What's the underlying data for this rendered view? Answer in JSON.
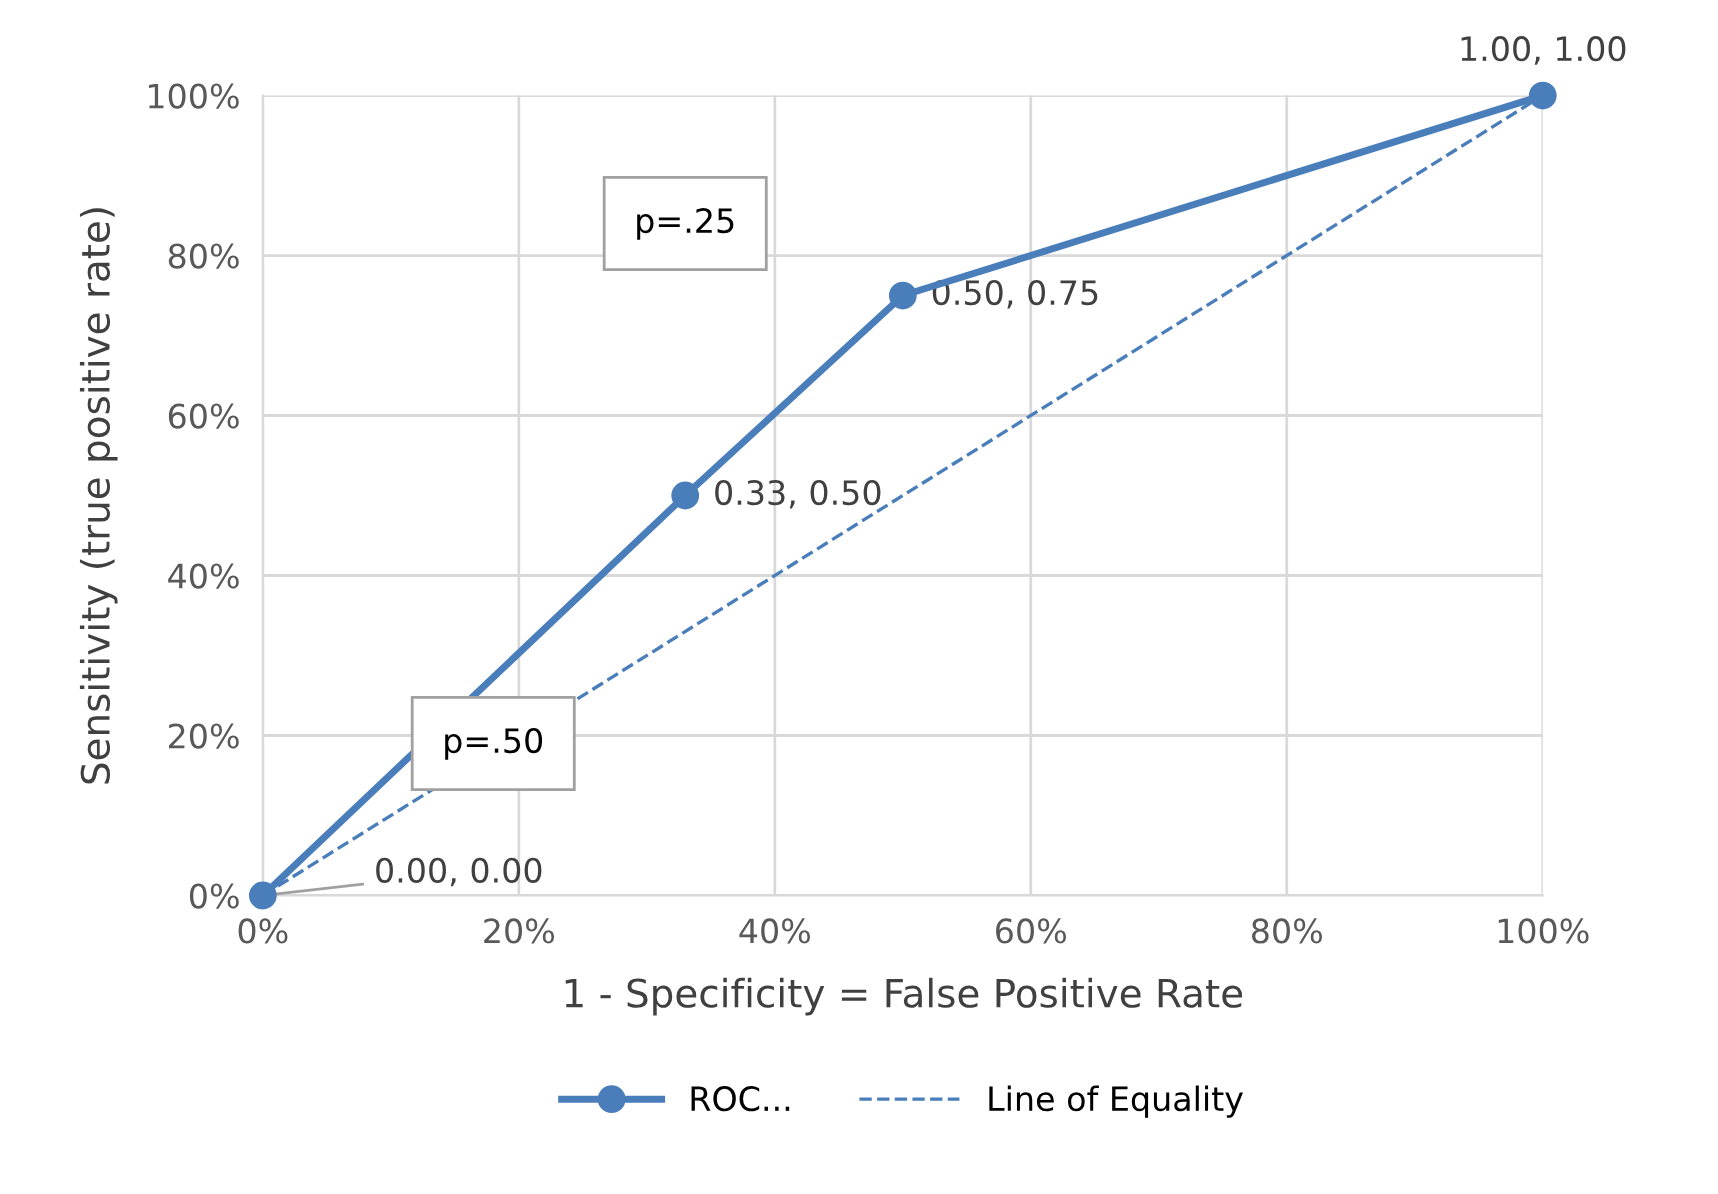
{
  "chart_data": {
    "type": "line",
    "xlabel": "1 - Specificity = False Positive Rate",
    "ylabel": "Sensitivity (true positive rate)",
    "series": [
      {
        "name": "ROC...",
        "color": "#4a7ebb",
        "x": [
          0,
          0.33,
          0.5,
          1
        ],
        "values": [
          0,
          0.5,
          0.75,
          1
        ],
        "marker": "circle",
        "line_style": "solid",
        "value_labels": [
          "0.00, 0.00",
          "0.33, 0.50",
          "0.50, 0.75",
          "1.00, 1.00"
        ]
      },
      {
        "name": "Line of Equality",
        "color": "#4a7ebb",
        "x": [
          0,
          1
        ],
        "values": [
          0,
          1
        ],
        "marker": "none",
        "line_style": "dashed"
      }
    ],
    "annotations": [
      "p=.25",
      "p=.50"
    ],
    "xlim": [
      0,
      1
    ],
    "ylim": [
      0,
      1
    ],
    "xticks": [
      {
        "value": 0,
        "label": "0%"
      },
      {
        "value": 0.2,
        "label": "20%"
      },
      {
        "value": 0.4,
        "label": "40%"
      },
      {
        "value": 0.6,
        "label": "60%"
      },
      {
        "value": 0.8,
        "label": "80%"
      },
      {
        "value": 1,
        "label": "100%"
      }
    ],
    "yticks": [
      {
        "value": 0,
        "label": "0%"
      },
      {
        "value": 0.2,
        "label": "20%"
      },
      {
        "value": 0.4,
        "label": "40%"
      },
      {
        "value": 0.6,
        "label": "60%"
      },
      {
        "value": 0.8,
        "label": "80%"
      },
      {
        "value": 1,
        "label": "100%"
      }
    ],
    "grid": true,
    "legend": "bottom"
  }
}
